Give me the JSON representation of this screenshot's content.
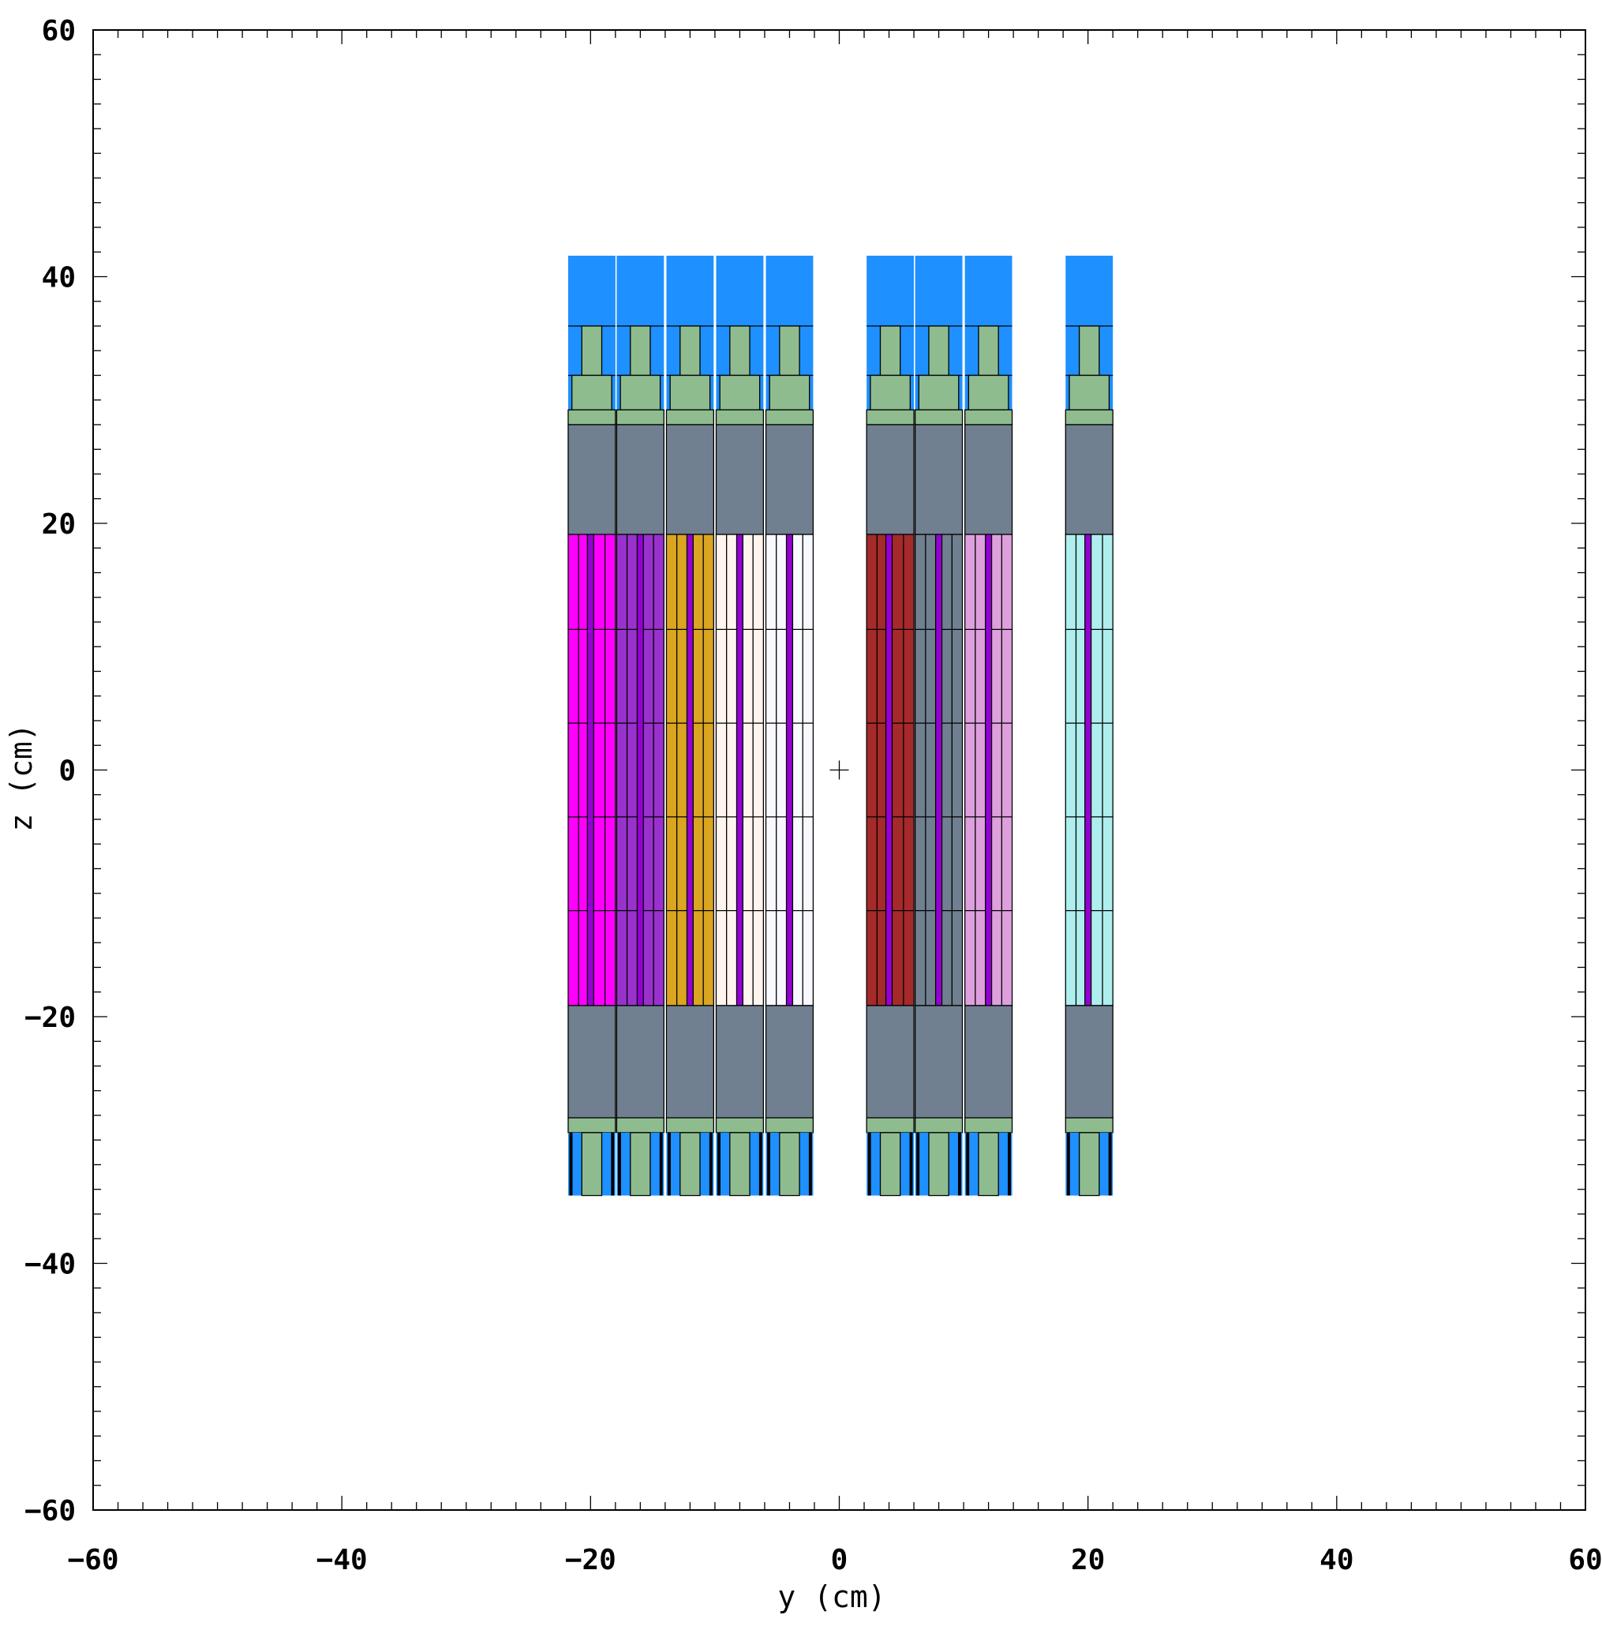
{
  "axes": {
    "xlabel": "y (cm)",
    "ylabel": "z (cm)",
    "xlim": [
      -60,
      60
    ],
    "ylim": [
      -60,
      60
    ],
    "xticks": [
      -60,
      -40,
      -20,
      0,
      20,
      40,
      60
    ],
    "yticks": [
      -60,
      -40,
      -20,
      0,
      20,
      40,
      60
    ],
    "xtick_labels": [
      "−60",
      "−40",
      "−20",
      "0",
      "20",
      "40",
      "60"
    ],
    "ytick_labels": [
      "−60",
      "−40",
      "−20",
      "0",
      "20",
      "40",
      "60"
    ],
    "minor_tick_step": 2,
    "grid": false
  },
  "geometry": {
    "z_ranges_cm": {
      "top_blue": [
        36,
        41.7
      ],
      "top_green_upper": [
        32,
        36
      ],
      "top_green_lower": [
        29.2,
        32
      ],
      "top_green_plate": [
        28,
        29.2
      ],
      "top_gray": [
        19.1,
        28
      ],
      "fuel": [
        -19.1,
        19.1
      ],
      "fuel_dividers": [
        -11.4,
        -3.8,
        3.8,
        11.4
      ],
      "bottom_gray": [
        -28.2,
        -19.1
      ],
      "bottom_green_plate": [
        -29.4,
        -28.2
      ],
      "bottom_assembly": [
        -34.5,
        -29.4
      ]
    },
    "column_width_cm": 3.9,
    "assemblies": [
      {
        "y_range_cm": [
          -21.8,
          -18
        ],
        "fill": "#ff00ff",
        "rod_y_cm": -20
      },
      {
        "y_range_cm": [
          -17.9,
          -14.1
        ],
        "fill": "#9932cc",
        "rod_y_cm": -16
      },
      {
        "y_range_cm": [
          -13.9,
          -10.1
        ],
        "fill": "#daa520",
        "rod_y_cm": -12
      },
      {
        "y_range_cm": [
          -9.9,
          -6.1
        ],
        "fill": "#fff5ee",
        "rod_y_cm": -8
      },
      {
        "y_range_cm": [
          -5.9,
          -2.1
        ],
        "fill": "#f8f8ff",
        "rod_y_cm": -4
      },
      {
        "y_range_cm": [
          2.2,
          6
        ],
        "fill": "#a52a2a",
        "rod_y_cm": 4
      },
      {
        "y_range_cm": [
          6.1,
          9.9
        ],
        "fill": "#708090",
        "rod_y_cm": 8
      },
      {
        "y_range_cm": [
          10.1,
          13.9
        ],
        "fill": "#dda0dd",
        "rod_y_cm": 12
      },
      {
        "y_range_cm": [
          18.2,
          22
        ],
        "fill": "#afeeee",
        "rod_y_cm": 20
      }
    ],
    "origin_marker": [
      0,
      0
    ]
  },
  "colors": {
    "blue": "#1e90ff",
    "green": "#8fbc8f",
    "gray": "#708090",
    "rod": "#9400d3",
    "outline": "#000000"
  }
}
